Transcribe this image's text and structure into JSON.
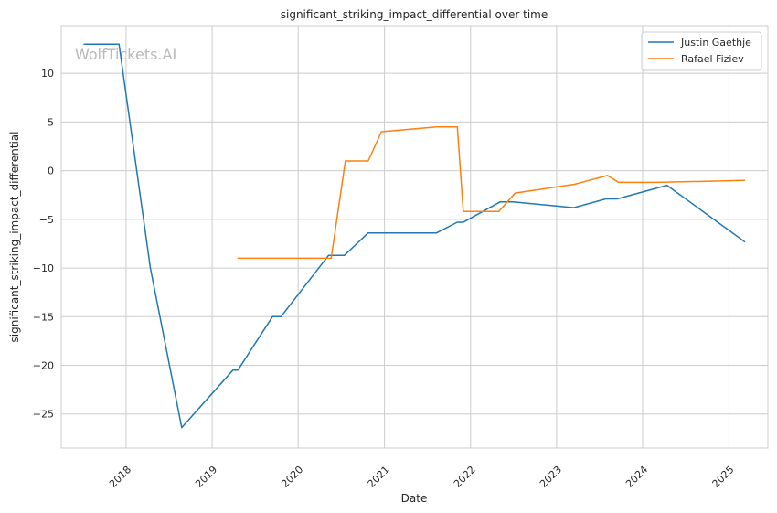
{
  "chart_data": {
    "type": "line",
    "title": "significant_striking_impact_differential over time",
    "xlabel": "Date",
    "ylabel": "significant_striking_impact_differential",
    "watermark": "WolfTickets.AI",
    "xlim": [
      "2017-04-01",
      "2025-06-15"
    ],
    "ylim": [
      -28.5,
      14.9
    ],
    "x_ticks": [
      "2018",
      "2019",
      "2020",
      "2021",
      "2022",
      "2023",
      "2024",
      "2025"
    ],
    "y_ticks": [
      10,
      5,
      0,
      -5,
      -10,
      -15,
      -20,
      -25
    ],
    "grid": true,
    "legend_position": "top-right",
    "series": [
      {
        "name": "Justin Gaethje",
        "color": "#1f77b4",
        "points": [
          [
            "2017-07-07",
            13.0
          ],
          [
            "2017-12-02",
            13.0
          ],
          [
            "2018-04-14",
            -10.0
          ],
          [
            "2018-08-25",
            -26.4
          ],
          [
            "2019-03-30",
            -20.5
          ],
          [
            "2019-04-20",
            -20.5
          ],
          [
            "2019-09-14",
            -15.0
          ],
          [
            "2019-10-20",
            -15.0
          ],
          [
            "2020-05-09",
            -8.7
          ],
          [
            "2020-07-15",
            -8.7
          ],
          [
            "2020-10-24",
            -6.4
          ],
          [
            "2021-08-10",
            -6.4
          ],
          [
            "2021-11-06",
            -5.3
          ],
          [
            "2021-12-01",
            -5.3
          ],
          [
            "2022-05-07",
            -3.2
          ],
          [
            "2022-07-01",
            -3.2
          ],
          [
            "2023-03-15",
            -3.8
          ],
          [
            "2023-07-29",
            -2.9
          ],
          [
            "2023-09-15",
            -2.9
          ],
          [
            "2024-04-13",
            -1.5
          ],
          [
            "2025-03-08",
            -7.3
          ]
        ]
      },
      {
        "name": "Rafael Fiziev",
        "color": "#ff7f0e",
        "points": [
          [
            "2019-04-20",
            -9.0
          ],
          [
            "2020-05-20",
            -9.0
          ],
          [
            "2020-07-19",
            1.0
          ],
          [
            "2020-10-24",
            1.0
          ],
          [
            "2020-12-19",
            4.0
          ],
          [
            "2021-08-10",
            4.5
          ],
          [
            "2021-11-06",
            4.5
          ],
          [
            "2021-12-01",
            -4.2
          ],
          [
            "2022-05-01",
            -4.2
          ],
          [
            "2022-07-09",
            -2.3
          ],
          [
            "2023-03-18",
            -1.4
          ],
          [
            "2023-08-05",
            -0.5
          ],
          [
            "2023-09-20",
            -1.2
          ],
          [
            "2024-03-01",
            -1.2
          ],
          [
            "2025-03-08",
            -1.0
          ]
        ]
      }
    ]
  }
}
